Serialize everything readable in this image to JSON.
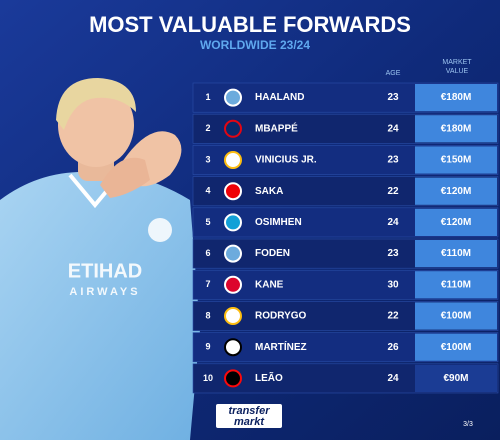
{
  "header": {
    "title": "MOST VALUABLE FORWARDS",
    "subtitle": "WORLDWIDE 23/24"
  },
  "table": {
    "columns": [
      "AGE",
      "MARKET VALUE"
    ],
    "rows": [
      [
        1,
        "HAALAND",
        23,
        "€180M"
      ],
      [
        2,
        "MBAPPÉ",
        24,
        "€180M"
      ],
      [
        3,
        "VINICIUS JR.",
        23,
        "€150M"
      ],
      [
        4,
        "SAKA",
        22,
        "€120M"
      ],
      [
        5,
        "OSIMHEN",
        24,
        "€120M"
      ],
      [
        6,
        "FODEN",
        23,
        "€110M"
      ],
      [
        7,
        "KANE",
        30,
        "€110M"
      ],
      [
        8,
        "RODRYGO",
        22,
        "€100M"
      ],
      [
        9,
        "MARTÍNEZ",
        26,
        "€100M"
      ],
      [
        10,
        "LEÃO",
        24,
        "€90M"
      ]
    ]
  },
  "footer": {
    "logo_top": "transfer",
    "logo_bottom": "markt",
    "page": "3/3"
  }
}
